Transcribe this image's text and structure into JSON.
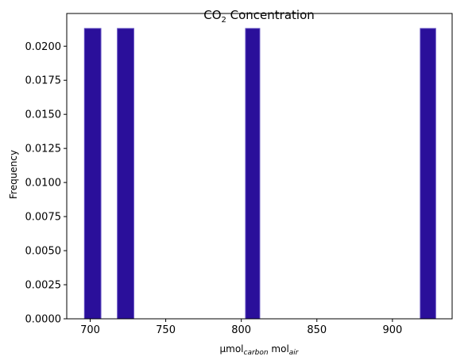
{
  "chart_data": {
    "type": "bar",
    "title": {
      "prefix": "CO",
      "sub": "2",
      "suffix": " Concentration"
    },
    "xlabel": {
      "a": "µmol",
      "a_sub": "carbon",
      "b": " mol",
      "b_sub": "air"
    },
    "ylabel": "Frequency",
    "xlim": [
      684.5,
      939.5
    ],
    "ylim": [
      0,
      0.0224
    ],
    "xticks": [
      700,
      750,
      800,
      850,
      900
    ],
    "xtick_labels": [
      "700",
      "750",
      "800",
      "850",
      "900"
    ],
    "yticks": [
      0,
      0.0025,
      0.005,
      0.0075,
      0.01,
      0.0125,
      0.015,
      0.0175,
      0.02
    ],
    "ytick_labels": [
      "0.0000",
      "0.0025",
      "0.0050",
      "0.0075",
      "0.0100",
      "0.0125",
      "0.0150",
      "0.0175",
      "0.0200"
    ],
    "bins": [
      {
        "x0": 696.2,
        "x1": 707.1,
        "value": 0.0213
      },
      {
        "x0": 718.0,
        "x1": 728.9,
        "value": 0.0213
      },
      {
        "x0": 802.8,
        "x1": 812.2,
        "value": 0.0213
      },
      {
        "x0": 918.4,
        "x1": 928.6,
        "value": 0.0213
      }
    ],
    "bar_color": "#2a0f9a",
    "edge_color": "#5e49c0",
    "grid": false,
    "legend": "none"
  }
}
